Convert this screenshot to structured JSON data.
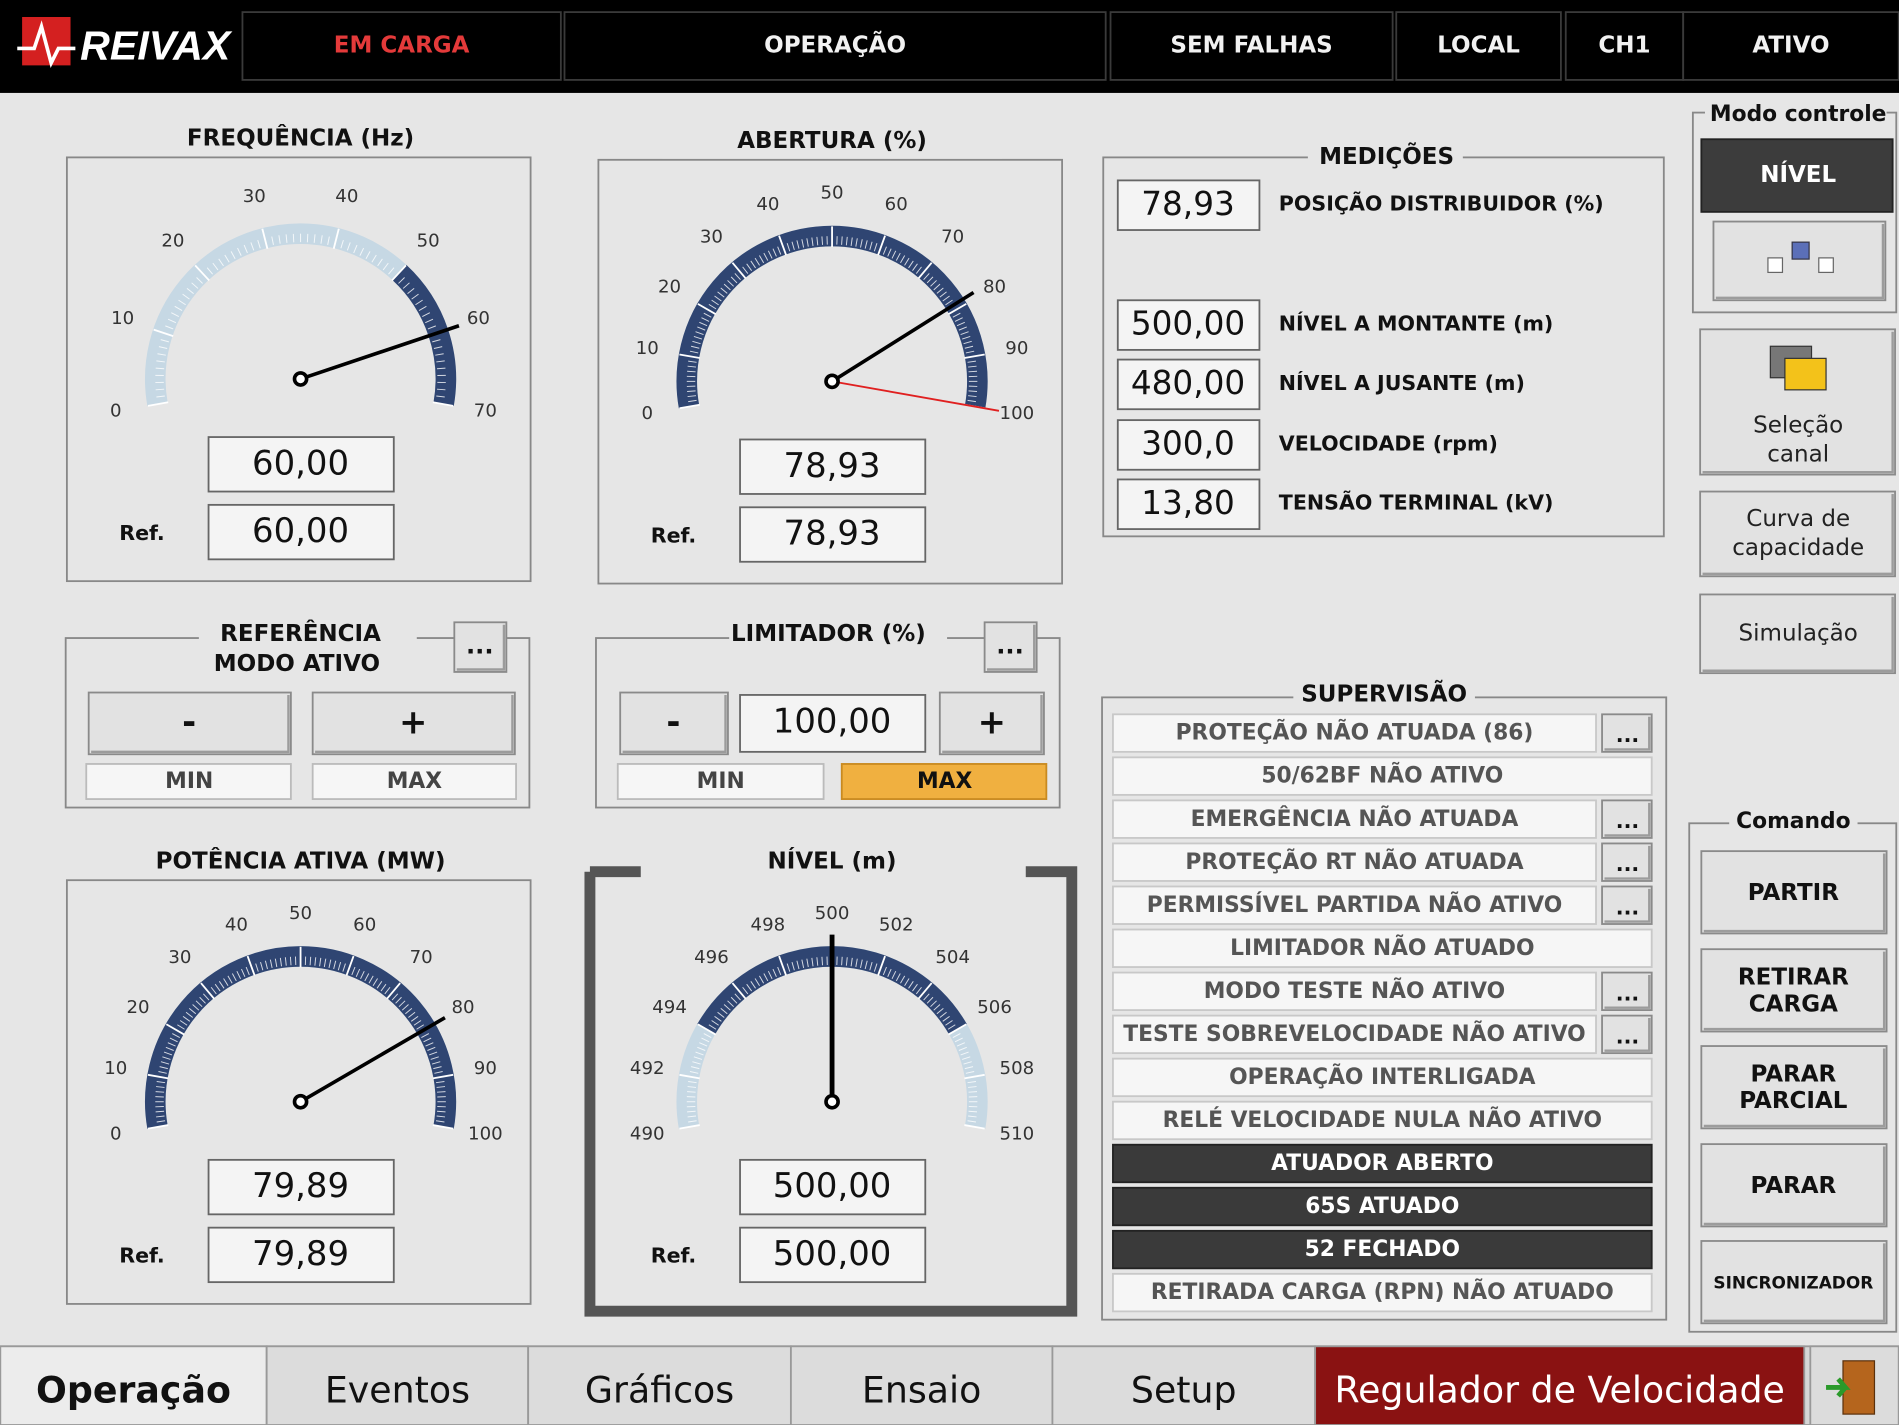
{
  "header": {
    "logo": "REIVAX",
    "status": [
      "EM CARGA",
      "OPERAÇÃO",
      "SEM FALHAS",
      "LOCAL",
      "CH1",
      "ATIVO"
    ]
  },
  "gauges": [
    {
      "title": "FREQUÊNCIA (Hz)",
      "ticks": [
        0,
        10,
        20,
        30,
        40,
        50,
        60,
        70
      ],
      "band": [
        50,
        70
      ],
      "value": 60,
      "value_label": "60,00",
      "ref_label": "Ref.",
      "ref": "60,00"
    },
    {
      "title": "ABERTURA (%)",
      "ticks": [
        0,
        10,
        20,
        30,
        40,
        50,
        60,
        70,
        80,
        90,
        100
      ],
      "band": [
        0,
        100
      ],
      "value": 78.93,
      "value_label": "78,93",
      "limit_marker": 100,
      "ref_label": "Ref.",
      "ref": "78,93"
    },
    {
      "title": "POTÊNCIA ATIVA (MW)",
      "ticks": [
        0,
        10,
        20,
        30,
        40,
        50,
        60,
        70,
        80,
        90,
        100
      ],
      "band": [
        0,
        100
      ],
      "value": 79.89,
      "value_label": "79,89",
      "ref_label": "Ref.",
      "ref": "79,89"
    },
    {
      "title": "NÍVEL (m)",
      "ticks": [
        490,
        492,
        494,
        496,
        498,
        500,
        502,
        504,
        506,
        508,
        510
      ],
      "band": [
        494,
        506
      ],
      "value": 500,
      "value_label": "500,00",
      "ref_label": "Ref.",
      "ref": "500,00"
    }
  ],
  "referencia": {
    "title": [
      "REFERÊNCIA",
      "MODO ATIVO"
    ],
    "more": "...",
    "minus": "-",
    "plus": "+",
    "min": "MIN",
    "max": "MAX"
  },
  "limitador": {
    "title": "LIMITADOR (%)",
    "more": "...",
    "minus": "-",
    "value": "100,00",
    "plus": "+",
    "min": "MIN",
    "max": "MAX"
  },
  "medicoes": {
    "title": "MEDIÇÕES",
    "rows": [
      {
        "value": "78,93",
        "label": "POSIÇÃO DISTRIBUIDOR (%)"
      },
      {
        "value": "500,00",
        "label": "NÍVEL A MONTANTE (m)"
      },
      {
        "value": "480,00",
        "label": "NÍVEL A JUSANTE (m)"
      },
      {
        "value": "300,0",
        "label": "VELOCIDADE (rpm)"
      },
      {
        "value": "13,80",
        "label": "TENSÃO TERMINAL (kV)"
      }
    ]
  },
  "supervisao": {
    "title": "SUPERVISÃO",
    "rows": [
      {
        "text": "PROTEÇÃO NÃO ATUADA (86)",
        "more": "...",
        "dark": false
      },
      {
        "text": "50/62BF NÃO ATIVO",
        "dark": false
      },
      {
        "text": "EMERGÊNCIA NÃO ATUADA",
        "more": "...",
        "dark": false
      },
      {
        "text": "PROTEÇÃO RT NÃO ATUADA",
        "more": "...",
        "dark": false
      },
      {
        "text": "PERMISSÍVEL PARTIDA NÃO ATIVO",
        "more": "...",
        "dark": false
      },
      {
        "text": "LIMITADOR NÃO ATUADO",
        "dark": false
      },
      {
        "text": "MODO TESTE NÃO ATIVO",
        "more": "...",
        "dark": false
      },
      {
        "text": "TESTE SOBREVELOCIDADE NÃO ATIVO",
        "more": "...",
        "dark": false
      },
      {
        "text": "OPERAÇÃO INTERLIGADA",
        "dark": false
      },
      {
        "text": "RELÉ VELOCIDADE NULA NÃO ATIVO",
        "dark": false
      },
      {
        "text": "ATUADOR ABERTO",
        "dark": true
      },
      {
        "text": "65S ATUADO",
        "dark": true
      },
      {
        "text": "52 FECHADO",
        "dark": true
      },
      {
        "text": "RETIRADA CARGA (RPN) NÃO ATUADO",
        "dark": false
      }
    ]
  },
  "modo_controle": {
    "title": "Modo controle",
    "mode": "NÍVEL"
  },
  "side_buttons": [
    [
      "Seleção",
      "canal"
    ],
    [
      "Curva de",
      "capacidade"
    ],
    [
      "Simulação"
    ]
  ],
  "comando": {
    "title": "Comando",
    "buttons": [
      [
        "PARTIR"
      ],
      [
        "RETIRAR",
        "CARGA"
      ],
      [
        "PARAR",
        "PARCIAL"
      ],
      [
        "PARAR"
      ],
      [
        "SINCRONIZADOR"
      ]
    ]
  },
  "tabs": [
    "Operação",
    "Eventos",
    "Gráficos",
    "Ensaio",
    "Setup",
    "Regulador de Velocidade"
  ]
}
